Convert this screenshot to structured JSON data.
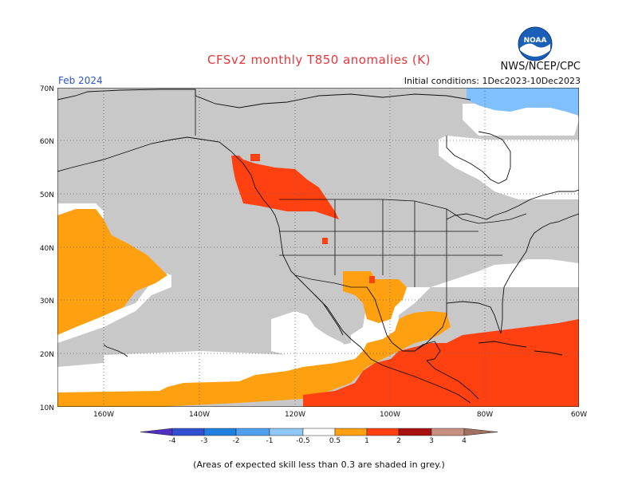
{
  "header": {
    "title": "CFSv2 monthly T850 anomalies (K)",
    "agency": "NWS/NCEP/CPC",
    "logo_text": "NOAA",
    "month": "Feb 2024",
    "initial_conditions": "Initial conditions: 1Dec2023-10Dec2023"
  },
  "map": {
    "lat_labels": [
      "70N",
      "60N",
      "50N",
      "40N",
      "30N",
      "20N",
      "10N"
    ],
    "lon_labels": [
      "160W",
      "140W",
      "120W",
      "100W",
      "80W",
      "60W"
    ],
    "colors": {
      "skill_grey": "#c8c8c8",
      "anom_0_5_1": "#ffa010",
      "anom_1_2": "#ff4010",
      "anom_neg_1_0_5": "#80c0ff",
      "coast": "#111111"
    }
  },
  "legend": {
    "labels": [
      "-4",
      "-3",
      "-2",
      "-1",
      "-0.5",
      "0.5",
      "1",
      "2",
      "3",
      "4"
    ],
    "colors": [
      "#5030c0",
      "#3050d0",
      "#2080e0",
      "#50a0f0",
      "#90c8f8",
      "#ffffff",
      "#ffa010",
      "#ff4010",
      "#a81010",
      "#c89080",
      "#a07060"
    ]
  },
  "footnote": "(Areas of expected skill less than 0.3 are shaded in grey.)"
}
